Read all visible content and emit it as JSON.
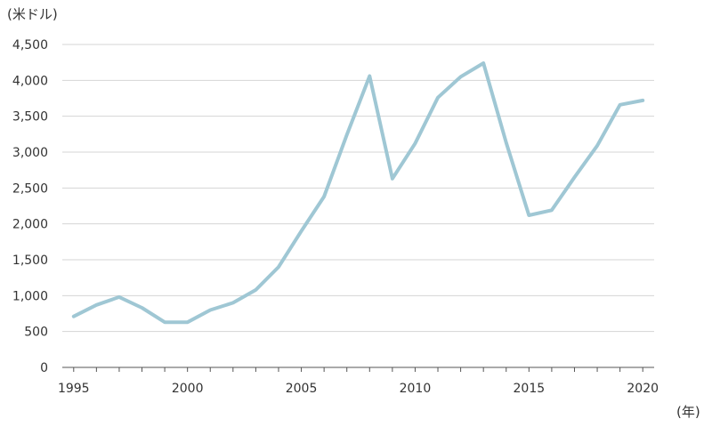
{
  "chart_data": {
    "type": "line",
    "title": "",
    "ylabel": "(米ドル)",
    "xlabel": "(年)",
    "x": [
      1995,
      1996,
      1997,
      1998,
      1999,
      2000,
      2001,
      2002,
      2003,
      2004,
      2005,
      2006,
      2007,
      2008,
      2009,
      2010,
      2011,
      2012,
      2013,
      2014,
      2015,
      2016,
      2017,
      2018,
      2019,
      2020
    ],
    "series": [
      {
        "name": "",
        "values": [
          710,
          870,
          980,
          830,
          630,
          630,
          800,
          900,
          1080,
          1400,
          1900,
          2380,
          3240,
          4060,
          2630,
          3120,
          3760,
          4050,
          4240,
          3130,
          2120,
          2190,
          2650,
          3090,
          3660,
          3720
        ],
        "color": "#9fc7d4"
      }
    ],
    "xlim": [
      1994.5,
      2020.5
    ],
    "ylim": [
      0,
      4500
    ],
    "x_ticks": [
      1995,
      2000,
      2005,
      2010,
      2015,
      2020
    ],
    "x_tick_labels": [
      "1995",
      "2000",
      "2005",
      "2010",
      "2015",
      "2020"
    ],
    "y_ticks": [
      0,
      500,
      1000,
      1500,
      2000,
      2500,
      3000,
      3500,
      4000,
      4500
    ],
    "y_tick_labels": [
      "0",
      "500",
      "1,000",
      "1,500",
      "2,000",
      "2,500",
      "3,000",
      "3,500",
      "4,000",
      "4,500"
    ],
    "grid": "horizontal",
    "legend": "none"
  }
}
